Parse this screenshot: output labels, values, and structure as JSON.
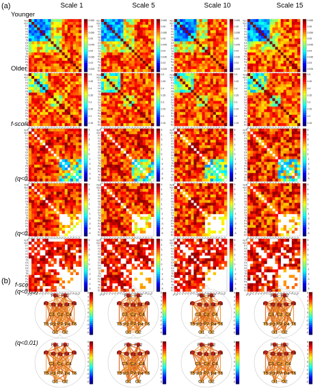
{
  "panels": {
    "a": "(a)",
    "b": "(b)"
  },
  "columns": [
    "Scale 1",
    "Scale 5",
    "Scale 10",
    "Scale 15"
  ],
  "rows_a": [
    {
      "label": "Younger",
      "kind": "younger"
    },
    {
      "label": "Older",
      "kind": "older"
    },
    {
      "label": "f-score",
      "kind": "fscore",
      "italic": true
    },
    {
      "label": "(q<0.05)",
      "kind": "q05",
      "italic": true
    },
    {
      "label": "(q<0.01)",
      "kind": "q01",
      "italic": true
    }
  ],
  "rows_b": [
    {
      "label": "f-score",
      "sub": "(q<0.05)",
      "italic": true
    },
    {
      "label": "",
      "sub": "(q<0.01)",
      "italic": true
    }
  ],
  "channels": [
    "Fp1",
    "Fp2",
    "F7",
    "F3",
    "Fz",
    "F4",
    "F8",
    "T3",
    "C3",
    "Cz",
    "C4",
    "T4",
    "T5",
    "P3",
    "Pz",
    "P4",
    "T6",
    "O1",
    "O2"
  ],
  "colorbar_ticks": {
    "younger": [
      "0.065",
      "0.06",
      "0.055",
      "0.05",
      "0.045",
      "0.04",
      "0.035",
      "0.03",
      "0.025"
    ],
    "older": [
      "0.5",
      "0.45",
      "0.4",
      "0.35",
      "0.3",
      "0.25",
      "0.2",
      "0.15"
    ],
    "fscore": [
      "5",
      "4",
      "3",
      "2",
      "1",
      "0",
      "-1",
      "-2",
      "-3",
      "-4",
      "-5"
    ]
  },
  "head_labels": [
    "Fp1",
    "Fp2",
    "F7",
    "F3",
    "Fz",
    "F4",
    "F8",
    "C3",
    "Cz",
    "C4",
    "T5",
    "P3",
    "Pz",
    "P4",
    "T6",
    "O1",
    "O2"
  ],
  "colors": {
    "hot": "#b40000",
    "cold": "#1c2a9e",
    "edge": "#e8892a"
  }
}
